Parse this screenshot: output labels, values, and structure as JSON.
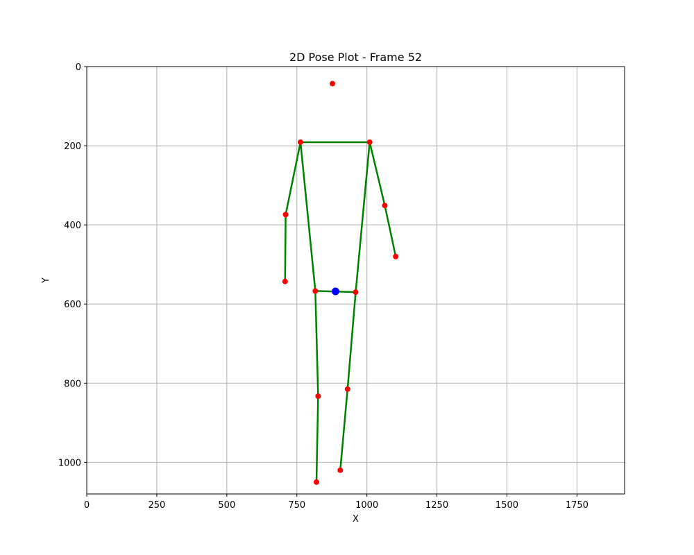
{
  "chart_data": {
    "type": "scatter",
    "title": "2D Pose Plot - Frame 52",
    "xlabel": "X",
    "ylabel": "Y",
    "xlim": [
      0,
      1920
    ],
    "ylim": [
      1080,
      0
    ],
    "y_inverted": true,
    "grid": true,
    "xticks": [
      0,
      250,
      500,
      750,
      1000,
      1250,
      1500,
      1750
    ],
    "yticks": [
      0,
      200,
      400,
      600,
      800,
      1000
    ],
    "colors": {
      "joint": "#ff0000",
      "center": "#0000ff",
      "bone": "#008000"
    },
    "joints": [
      {
        "name": "head",
        "x": 877,
        "y": 43
      },
      {
        "name": "left_shoulder",
        "x": 763,
        "y": 191
      },
      {
        "name": "right_shoulder",
        "x": 1010,
        "y": 191
      },
      {
        "name": "left_elbow",
        "x": 710,
        "y": 374
      },
      {
        "name": "left_wrist",
        "x": 708,
        "y": 543
      },
      {
        "name": "right_elbow",
        "x": 1064,
        "y": 351
      },
      {
        "name": "right_wrist",
        "x": 1103,
        "y": 480
      },
      {
        "name": "left_hip",
        "x": 816,
        "y": 567
      },
      {
        "name": "right_hip",
        "x": 960,
        "y": 570
      },
      {
        "name": "left_knee",
        "x": 826,
        "y": 833
      },
      {
        "name": "left_ankle",
        "x": 820,
        "y": 1050
      },
      {
        "name": "right_knee",
        "x": 931,
        "y": 815
      },
      {
        "name": "right_ankle",
        "x": 905,
        "y": 1020
      }
    ],
    "center_point": {
      "x": 888,
      "y": 568
    },
    "bones": [
      [
        "left_shoulder",
        "right_shoulder"
      ],
      [
        "left_shoulder",
        "left_elbow"
      ],
      [
        "left_elbow",
        "left_wrist"
      ],
      [
        "right_shoulder",
        "right_elbow"
      ],
      [
        "right_elbow",
        "right_wrist"
      ],
      [
        "left_shoulder",
        "left_hip"
      ],
      [
        "right_shoulder",
        "right_hip"
      ],
      [
        "left_hip",
        "right_hip"
      ],
      [
        "left_hip",
        "left_knee"
      ],
      [
        "left_knee",
        "left_ankle"
      ],
      [
        "right_hip",
        "right_knee"
      ],
      [
        "right_knee",
        "right_ankle"
      ]
    ]
  }
}
